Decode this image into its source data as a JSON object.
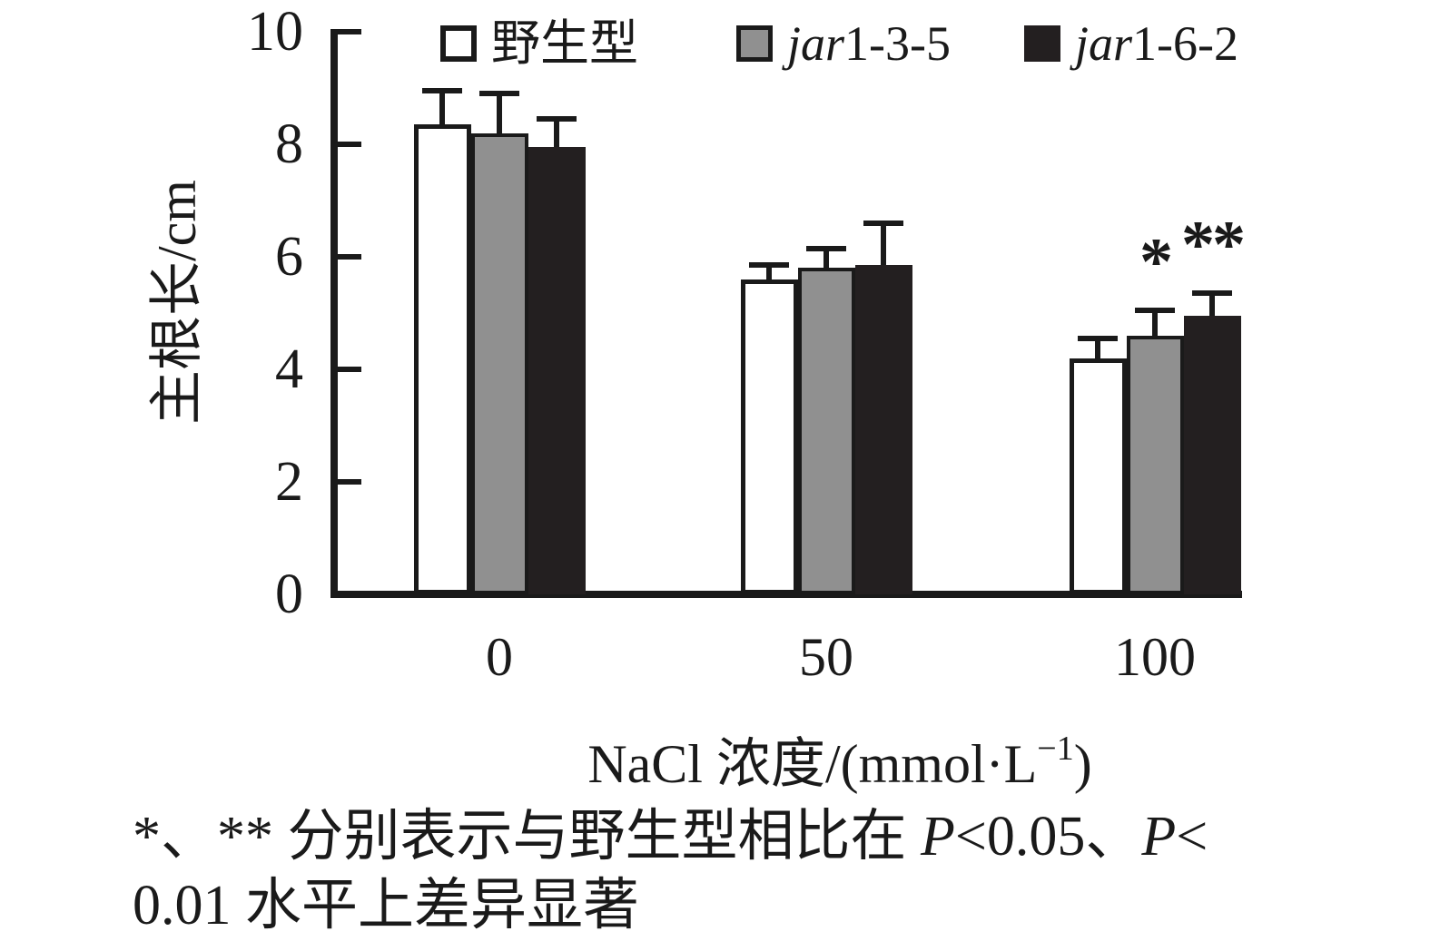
{
  "figure": {
    "background": "#ffffff",
    "ink_color": "#1a1a1a"
  },
  "legend": {
    "items": [
      {
        "label_italic": "",
        "label": "野生型",
        "swatch_color": "#ffffff",
        "swatch_border": "#1a1a1a"
      },
      {
        "label_italic": "jar",
        "label": "1-3-5",
        "swatch_color": "#909090",
        "swatch_border": "#1a1a1a"
      },
      {
        "label_italic": "jar",
        "label": "1-6-2",
        "swatch_color": "#231f20",
        "swatch_border": "#1a1a1a"
      }
    ]
  },
  "chart_data": {
    "type": "bar",
    "title": "",
    "categories": [
      "0",
      "50",
      "100"
    ],
    "series": [
      {
        "name": "野生型",
        "color": "#ffffff",
        "values": [
          8.35,
          5.6,
          4.2
        ],
        "errors_plus": [
          0.6,
          0.25,
          0.35
        ],
        "annotations": [
          "",
          "",
          ""
        ]
      },
      {
        "name": "jar1-3-5",
        "color": "#909090",
        "values": [
          8.2,
          5.8,
          4.6
        ],
        "errors_plus": [
          0.7,
          0.35,
          0.45
        ],
        "annotations": [
          "",
          "",
          "*"
        ]
      },
      {
        "name": "jar1-6-2",
        "color": "#231f20",
        "values": [
          7.95,
          5.85,
          4.95
        ],
        "errors_plus": [
          0.5,
          0.75,
          0.4
        ],
        "annotations": [
          "",
          "",
          "**"
        ]
      }
    ],
    "ylabel": "主根长/cm",
    "xlabel": "NaCl 浓度/(mmol·L⁻¹)",
    "ylim": [
      0,
      10
    ],
    "yticks": [
      0,
      2,
      4,
      6,
      8,
      10
    ],
    "grid": false,
    "legend_position": "top",
    "error_bars": "upper_only"
  },
  "axis_titles": {
    "ylabel": "主根长/cm",
    "xlabel_prefix": "NaCl 浓度/(mmol·L",
    "xlabel_sup": "−1",
    "xlabel_suffix": ")"
  },
  "footnote": {
    "line1_seg1": "*、** 分别表示与野生型相比在 ",
    "line1_p1": "P",
    "line1_seg2": "<0.05、",
    "line1_p2": "P",
    "line1_seg3": "<",
    "line2": "0.01 水平上差异显著"
  }
}
